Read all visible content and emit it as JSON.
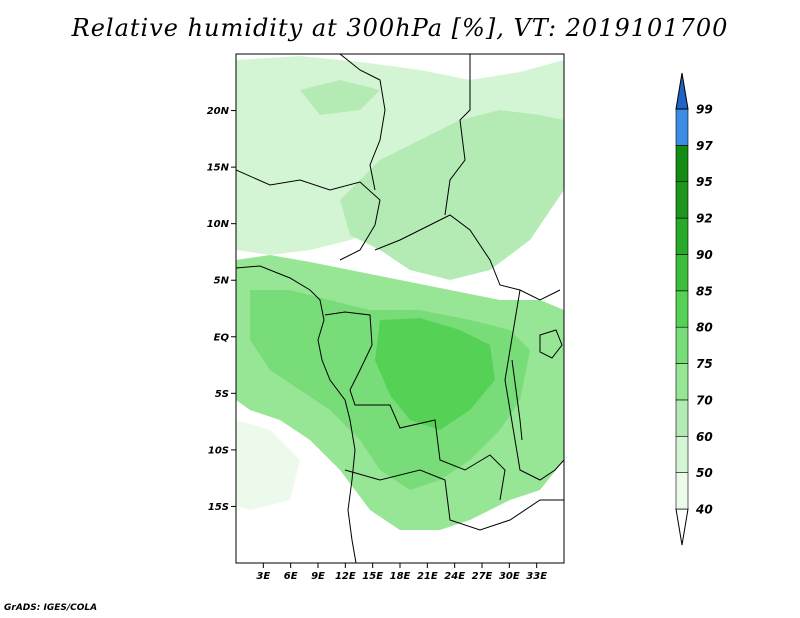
{
  "title": "Relative humidity at 300hPa [%], VT: 2019101700",
  "credit": "GrADS: IGES/COLA",
  "map": {
    "lon_range": [
      0,
      36
    ],
    "lat_range": [
      -20,
      25
    ],
    "lat_ticks": [
      {
        "lat": 20,
        "label": "20N"
      },
      {
        "lat": 15,
        "label": "15N"
      },
      {
        "lat": 10,
        "label": "10N"
      },
      {
        "lat": 5,
        "label": "5N"
      },
      {
        "lat": 0,
        "label": "EQ"
      },
      {
        "lat": -5,
        "label": "5S"
      },
      {
        "lat": -10,
        "label": "10S"
      },
      {
        "lat": -15,
        "label": "15S"
      }
    ],
    "lon_ticks": [
      {
        "lon": 3,
        "label": "3E"
      },
      {
        "lon": 6,
        "label": "6E"
      },
      {
        "lon": 9,
        "label": "9E"
      },
      {
        "lon": 12,
        "label": "12E"
      },
      {
        "lon": 15,
        "label": "15E"
      },
      {
        "lon": 18,
        "label": "18E"
      },
      {
        "lon": 21,
        "label": "21E"
      },
      {
        "lon": 24,
        "label": "24E"
      },
      {
        "lon": 27,
        "label": "27E"
      },
      {
        "lon": 30,
        "label": "30E"
      },
      {
        "lon": 33,
        "label": "33E"
      }
    ]
  },
  "colorbar": {
    "levels": [
      {
        "value": 40,
        "label": "40",
        "color": "#ebfaeb"
      },
      {
        "value": 50,
        "label": "50",
        "color": "#d4f5d4"
      },
      {
        "value": 60,
        "label": "60",
        "color": "#b4ebb4"
      },
      {
        "value": 70,
        "label": "70",
        "color": "#96e696"
      },
      {
        "value": 75,
        "label": "75",
        "color": "#78dc78"
      },
      {
        "value": 80,
        "label": "80",
        "color": "#55d255"
      },
      {
        "value": 85,
        "label": "85",
        "color": "#3cbe3c"
      },
      {
        "value": 90,
        "label": "90",
        "color": "#28aa28"
      },
      {
        "value": 92,
        "label": "92",
        "color": "#1e961e"
      },
      {
        "value": 95,
        "label": "95",
        "color": "#148c14"
      },
      {
        "value": 97,
        "label": "97",
        "color": "#3c8ce6"
      },
      {
        "value": 99,
        "label": "99",
        "color": "#2878dc"
      }
    ],
    "top_arrow_color": "#1e64c8",
    "bottom_arrow_color": "#ffffff"
  }
}
